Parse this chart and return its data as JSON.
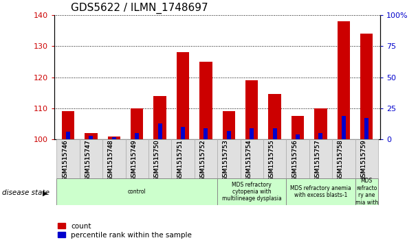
{
  "title": "GDS5622 / ILMN_1748697",
  "samples": [
    "GSM1515746",
    "GSM1515747",
    "GSM1515748",
    "GSM1515749",
    "GSM1515750",
    "GSM1515751",
    "GSM1515752",
    "GSM1515753",
    "GSM1515754",
    "GSM1515755",
    "GSM1515756",
    "GSM1515757",
    "GSM1515758",
    "GSM1515759"
  ],
  "count_values": [
    109,
    102,
    101,
    110,
    114,
    128,
    125,
    109,
    119,
    114.5,
    107.5,
    110,
    138,
    134
  ],
  "percentile_values": [
    6,
    3,
    2,
    5,
    13,
    10,
    9,
    7,
    9,
    9,
    4,
    5,
    19,
    17
  ],
  "ylim_left": [
    100,
    140
  ],
  "ylim_right": [
    0,
    100
  ],
  "yticks_left": [
    100,
    110,
    120,
    130,
    140
  ],
  "yticks_right": [
    0,
    25,
    50,
    75,
    100
  ],
  "ytick_labels_right": [
    "0",
    "25",
    "50",
    "75",
    "100%"
  ],
  "bar_color_red": "#cc0000",
  "bar_color_blue": "#0000cc",
  "bar_width": 0.55,
  "blue_bar_width": 0.18,
  "disease_groups": [
    {
      "label": "control",
      "start": 0,
      "end": 7,
      "color": "#ccffcc"
    },
    {
      "label": "MDS refractory\ncytopenia with\nmultilineage dysplasia",
      "start": 7,
      "end": 10,
      "color": "#ccffcc"
    },
    {
      "label": "MDS refractory anemia\nwith excess blasts-1",
      "start": 10,
      "end": 13,
      "color": "#ccffcc"
    },
    {
      "label": "MDS\nrefracto\nry ane\nmia with",
      "start": 13,
      "end": 14,
      "color": "#ccffcc"
    }
  ],
  "disease_state_label": "disease state",
  "legend_count": "count",
  "legend_percentile": "percentile rank within the sample",
  "left_label_color": "#cc0000",
  "right_label_color": "#0000cc"
}
